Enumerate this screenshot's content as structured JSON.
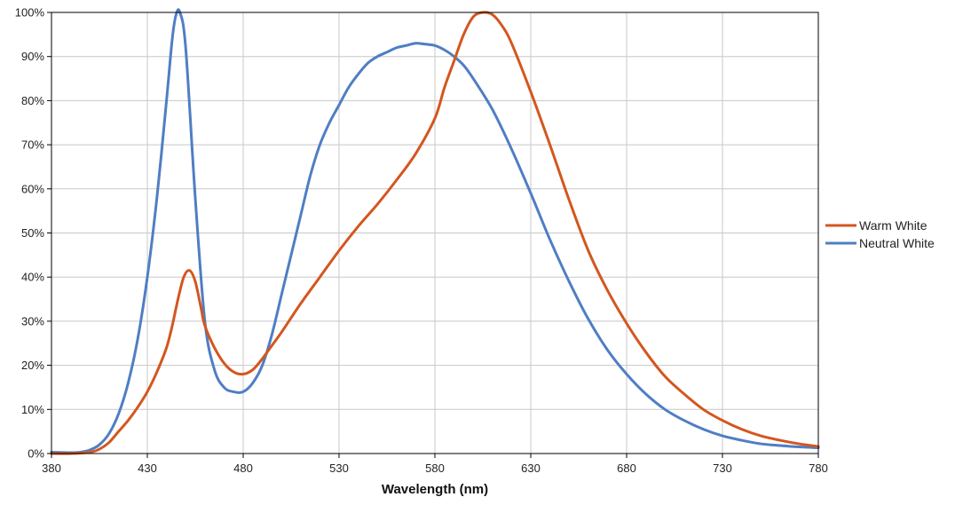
{
  "chart_data": {
    "type": "line",
    "title": "",
    "xlabel": "Wavelength (nm)",
    "ylabel": "",
    "xlim": [
      380,
      780
    ],
    "ylim": [
      0,
      100
    ],
    "x_ticks": [
      380,
      430,
      480,
      530,
      580,
      630,
      680,
      730,
      780
    ],
    "x_tick_labels": [
      "380",
      "430",
      "480",
      "530",
      "580",
      "630",
      "680",
      "730",
      "780"
    ],
    "y_ticks": [
      0,
      10,
      20,
      30,
      40,
      50,
      60,
      70,
      80,
      90,
      100
    ],
    "y_tick_labels": [
      "0%",
      "10%",
      "20%",
      "30%",
      "40%",
      "50%",
      "60%",
      "70%",
      "80%",
      "90%",
      "100%"
    ],
    "grid": true,
    "legend_position": "right",
    "series": [
      {
        "name": "Warm White",
        "color": "#d4561f",
        "x": [
          380,
          390,
          400,
          405,
          410,
          415,
          420,
          425,
          430,
          435,
          440,
          443,
          446,
          449,
          452,
          455,
          458,
          460,
          465,
          470,
          475,
          480,
          485,
          490,
          495,
          500,
          510,
          520,
          530,
          540,
          550,
          560,
          570,
          580,
          585,
          590,
          595,
          600,
          605,
          610,
          615,
          620,
          630,
          640,
          650,
          660,
          670,
          680,
          690,
          700,
          710,
          720,
          730,
          740,
          750,
          760,
          770,
          780
        ],
        "y": [
          0,
          0,
          0.3,
          1,
          2.5,
          5,
          7.5,
          10.5,
          14,
          18.5,
          24,
          29,
          35,
          40,
          41.5,
          39,
          33,
          29,
          24,
          20.5,
          18.5,
          18,
          19,
          21.5,
          24.5,
          27.5,
          34,
          40,
          46,
          51.5,
          56.5,
          62,
          68,
          76,
          83,
          89,
          95,
          99,
          100,
          99.5,
          97,
          93,
          82,
          70,
          57.5,
          46,
          37,
          29.5,
          23,
          17.5,
          13.5,
          10,
          7.5,
          5.5,
          4,
          3,
          2.2,
          1.6
        ]
      },
      {
        "name": "Neutral White",
        "color": "#4f7ec4",
        "x": [
          380,
          390,
          395,
          400,
          405,
          410,
          415,
          420,
          425,
          430,
          435,
          440,
          443,
          445,
          447,
          450,
          455,
          460,
          465,
          470,
          475,
          480,
          485,
          490,
          495,
          500,
          505,
          510,
          515,
          520,
          525,
          530,
          535,
          540,
          545,
          550,
          555,
          560,
          565,
          570,
          575,
          580,
          585,
          590,
          595,
          600,
          610,
          620,
          630,
          640,
          650,
          660,
          670,
          680,
          690,
          700,
          710,
          720,
          730,
          740,
          750,
          760,
          770,
          780
        ],
        "y": [
          0.3,
          0.2,
          0.3,
          0.8,
          2,
          4.5,
          9,
          16,
          26,
          40,
          58,
          80,
          94,
          99.5,
          100,
          92,
          58,
          30,
          19,
          15,
          14,
          14,
          16,
          20,
          27,
          36,
          45,
          54,
          63,
          70,
          75,
          79,
          83,
          86,
          88.5,
          90,
          91,
          92,
          92.5,
          93,
          92.8,
          92.5,
          91.5,
          90,
          88,
          85,
          78,
          69,
          59,
          48.5,
          39,
          30.5,
          23.5,
          18,
          13.5,
          10,
          7.5,
          5.5,
          4,
          3,
          2.2,
          1.8,
          1.5,
          1.3
        ]
      }
    ]
  }
}
